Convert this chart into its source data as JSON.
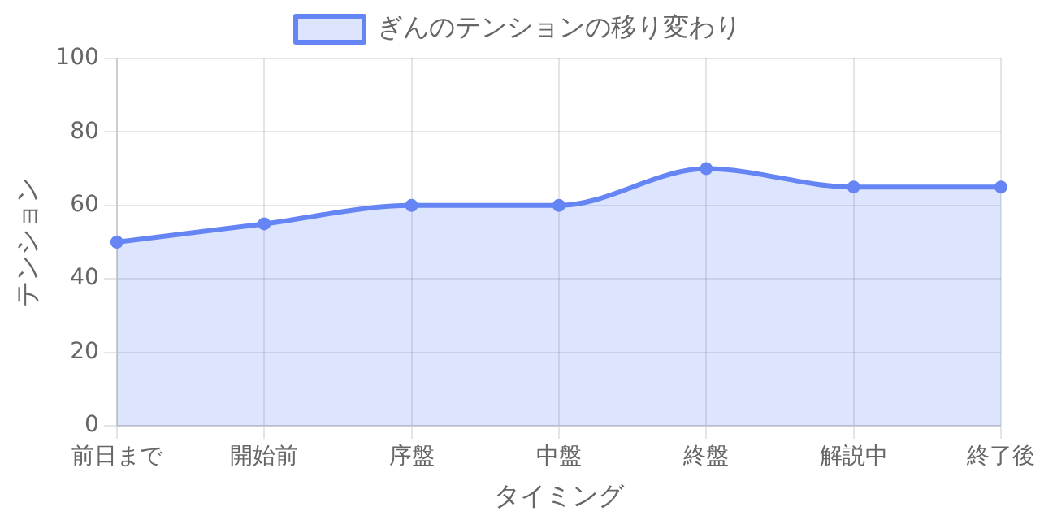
{
  "chart_data": {
    "type": "area",
    "xlabel": "タイミング",
    "ylabel": "テンション",
    "categories": [
      "前日まで",
      "開始前",
      "序盤",
      "中盤",
      "終盤",
      "解説中",
      "終了後"
    ],
    "series": [
      {
        "name": "ぎんのテンションの移り変わり",
        "color": "#6685f5",
        "values": [
          50,
          55,
          60,
          60,
          70,
          65,
          65
        ]
      }
    ],
    "ylim": [
      0,
      100
    ],
    "yticks": [
      0,
      20,
      40,
      60,
      80,
      100
    ],
    "grid": true,
    "legend": "top",
    "marker": "circle",
    "line_style": "solid"
  }
}
